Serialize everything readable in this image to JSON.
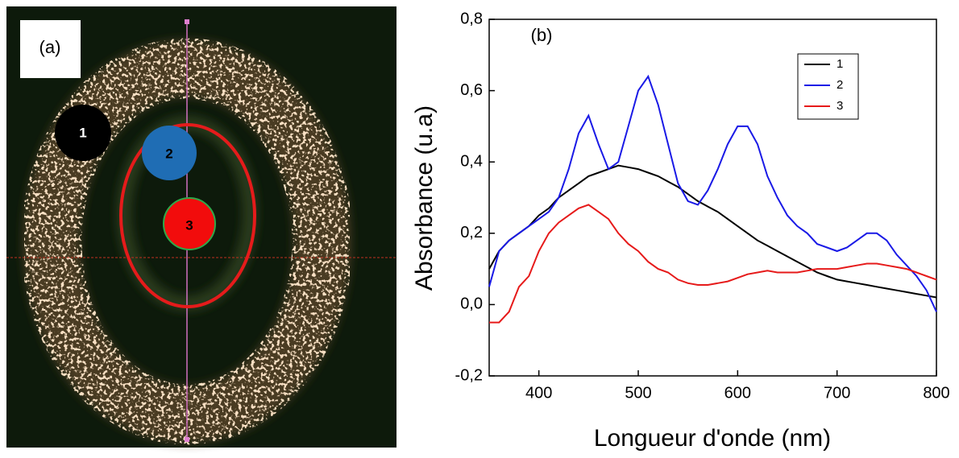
{
  "panel_a": {
    "label": "(a)",
    "markers": [
      "1",
      "2",
      "3"
    ]
  },
  "chart_data": {
    "type": "line",
    "annotation": "(b)",
    "x_label": "Longueur d'onde (nm)",
    "y_label": "Absorbance (u.a)",
    "xlim": [
      350,
      800
    ],
    "ylim": [
      -0.2,
      0.8
    ],
    "xticks": [
      400,
      500,
      600,
      700,
      800
    ],
    "yticks": [
      {
        "value": -0.2,
        "label": "-0,2"
      },
      {
        "value": 0,
        "label": "0,0"
      },
      {
        "value": 0.2,
        "label": "0,2"
      },
      {
        "value": 0.4,
        "label": "0,4"
      },
      {
        "value": 0.6,
        "label": "0,6"
      },
      {
        "value": 0.8,
        "label": "0,8"
      }
    ],
    "legend": "upper right",
    "x": [
      350,
      360,
      370,
      380,
      390,
      400,
      410,
      420,
      430,
      440,
      450,
      460,
      470,
      480,
      490,
      500,
      510,
      520,
      530,
      540,
      550,
      560,
      570,
      580,
      590,
      600,
      610,
      620,
      630,
      640,
      650,
      660,
      670,
      680,
      690,
      700,
      710,
      720,
      730,
      740,
      750,
      760,
      770,
      780,
      790,
      800
    ],
    "series": [
      {
        "name": "1",
        "color": "#000000",
        "values": [
          0.1,
          0.15,
          0.18,
          0.2,
          0.22,
          0.25,
          0.27,
          0.3,
          0.32,
          0.34,
          0.36,
          0.37,
          0.38,
          0.39,
          0.385,
          0.38,
          0.37,
          0.36,
          0.345,
          0.33,
          0.31,
          0.29,
          0.275,
          0.26,
          0.24,
          0.22,
          0.2,
          0.18,
          0.165,
          0.15,
          0.135,
          0.12,
          0.105,
          0.09,
          0.08,
          0.07,
          0.065,
          0.06,
          0.055,
          0.05,
          0.045,
          0.04,
          0.035,
          0.03,
          0.025,
          0.02
        ]
      },
      {
        "name": "2",
        "color": "#1a1ae6",
        "values": [
          0.05,
          0.15,
          0.18,
          0.2,
          0.22,
          0.24,
          0.26,
          0.3,
          0.38,
          0.48,
          0.53,
          0.45,
          0.38,
          0.4,
          0.5,
          0.6,
          0.64,
          0.56,
          0.45,
          0.34,
          0.29,
          0.28,
          0.32,
          0.38,
          0.45,
          0.5,
          0.5,
          0.45,
          0.36,
          0.3,
          0.25,
          0.22,
          0.2,
          0.17,
          0.16,
          0.15,
          0.16,
          0.18,
          0.2,
          0.2,
          0.18,
          0.14,
          0.11,
          0.08,
          0.04,
          -0.02
        ]
      },
      {
        "name": "3",
        "color": "#e61a1a",
        "values": [
          -0.05,
          -0.05,
          -0.02,
          0.05,
          0.08,
          0.15,
          0.2,
          0.23,
          0.25,
          0.27,
          0.28,
          0.26,
          0.24,
          0.2,
          0.17,
          0.15,
          0.12,
          0.1,
          0.09,
          0.07,
          0.06,
          0.055,
          0.055,
          0.06,
          0.065,
          0.075,
          0.085,
          0.09,
          0.095,
          0.09,
          0.09,
          0.09,
          0.095,
          0.1,
          0.1,
          0.1,
          0.105,
          0.11,
          0.115,
          0.115,
          0.11,
          0.105,
          0.1,
          0.09,
          0.08,
          0.07
        ]
      }
    ]
  }
}
